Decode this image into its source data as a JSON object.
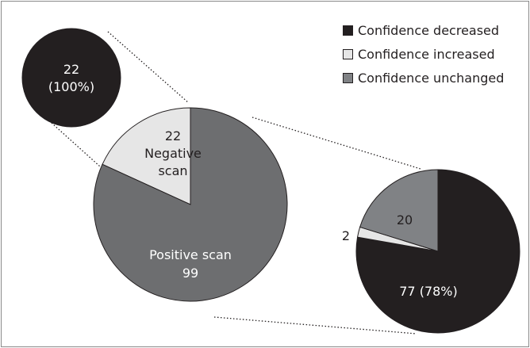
{
  "chart_data": [
    {
      "type": "pie",
      "categories": [
        "Negative scan",
        "Positive scan"
      ],
      "values": [
        22,
        99
      ],
      "colors": [
        "#e6e6e6",
        "#6d6e70"
      ]
    },
    {
      "type": "pie",
      "values": [
        22
      ],
      "value_labels": [
        "22 (100%)"
      ],
      "colors": [
        "#231f20"
      ]
    },
    {
      "type": "pie",
      "categories": [
        "Confidence decreased",
        "Confidence increased",
        "Confidence unchanged"
      ],
      "values": [
        77,
        2,
        20
      ],
      "value_labels": [
        "77 (78%)",
        "2",
        "20"
      ],
      "colors": [
        "#231f20",
        "#e6e6e6",
        "#808285"
      ],
      "legend": "upper right"
    }
  ]
}
